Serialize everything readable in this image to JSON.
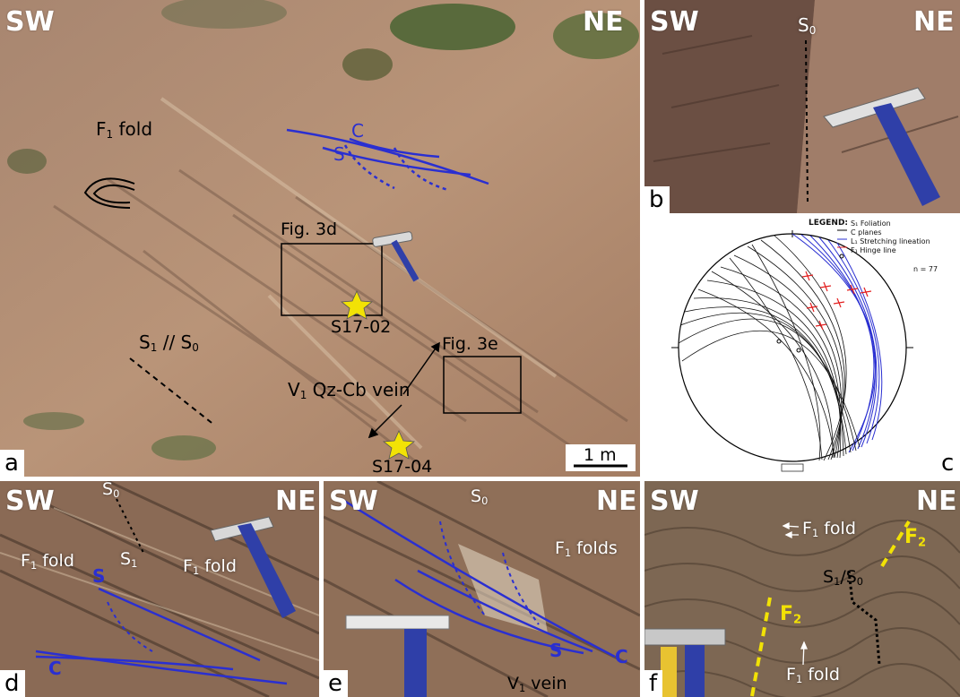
{
  "panel_a": {
    "letter": "a",
    "corner_left": "SW",
    "corner_right": "NE",
    "f1_fold_main": "F",
    "f1_fold_sub": "1",
    "f1_fold_rest": " fold",
    "c_label": "C",
    "s_label": "S",
    "fig3d": "Fig. 3d",
    "fig3e": "Fig. 3e",
    "sample1": "S17-02",
    "sample2": "S17-04",
    "s1s0_a": "S",
    "s1s0_a_sub": "1",
    "s1s0_mid": " // S",
    "s1s0_b_sub": "0",
    "vein_a": "V",
    "vein_sub": "1",
    "vein_rest": " Qz-Cb vein",
    "scale": "1 m"
  },
  "panel_b": {
    "letter": "b",
    "corner_left": "SW",
    "corner_right": "NE",
    "s0_main": "S",
    "s0_sub": "0"
  },
  "panel_c": {
    "letter": "c",
    "legend_title": "LEGEND:",
    "legend_items": [
      "S₁ Foliation",
      "C planes",
      "L₁ Stretching lineation",
      "F₁ Hinge line"
    ],
    "n": "n = 77"
  },
  "panel_d": {
    "letter": "d",
    "corner_left": "SW",
    "corner_right": "NE",
    "s0_main": "S",
    "s0_sub": "0",
    "f1a_main": "F",
    "f1a_sub": "1",
    "f1a_rest": " fold",
    "s1_main": "S",
    "s1_sub": "1",
    "f1b_main": "F",
    "f1b_sub": "1",
    "f1b_rest": " fold",
    "s_label": "S",
    "c_label": "C"
  },
  "panel_e": {
    "letter": "e",
    "corner_left": "SW",
    "corner_right": "NE",
    "s0_main": "S",
    "s0_sub": "0",
    "f1_main": "F",
    "f1_sub": "1",
    "f1_rest": " folds",
    "s_label": "S",
    "c_label": "C",
    "vein_main": "V",
    "vein_sub": "1",
    "vein_rest": " vein"
  },
  "panel_f": {
    "letter": "f",
    "corner_left": "SW",
    "corner_right": "NE",
    "f1a_main": "F",
    "f1a_sub": "1",
    "f1a_rest": " fold",
    "f2a_main": "F",
    "f2a_sub": "2",
    "s1s0_a": "S",
    "s1s0_a_sub": "1",
    "s1s0_mid": "/S",
    "s1s0_b_sub": "0",
    "f2b_main": "F",
    "f2b_sub": "2",
    "f1b_main": "F",
    "f1b_sub": "1",
    "f1b_rest": " fold"
  },
  "colors": {
    "rock_light": "#b58e72",
    "rock_dark": "#6f5444",
    "blue_lines": "#2a2fd1",
    "yellow": "#f2e205",
    "label_bg": "#ffffff"
  }
}
